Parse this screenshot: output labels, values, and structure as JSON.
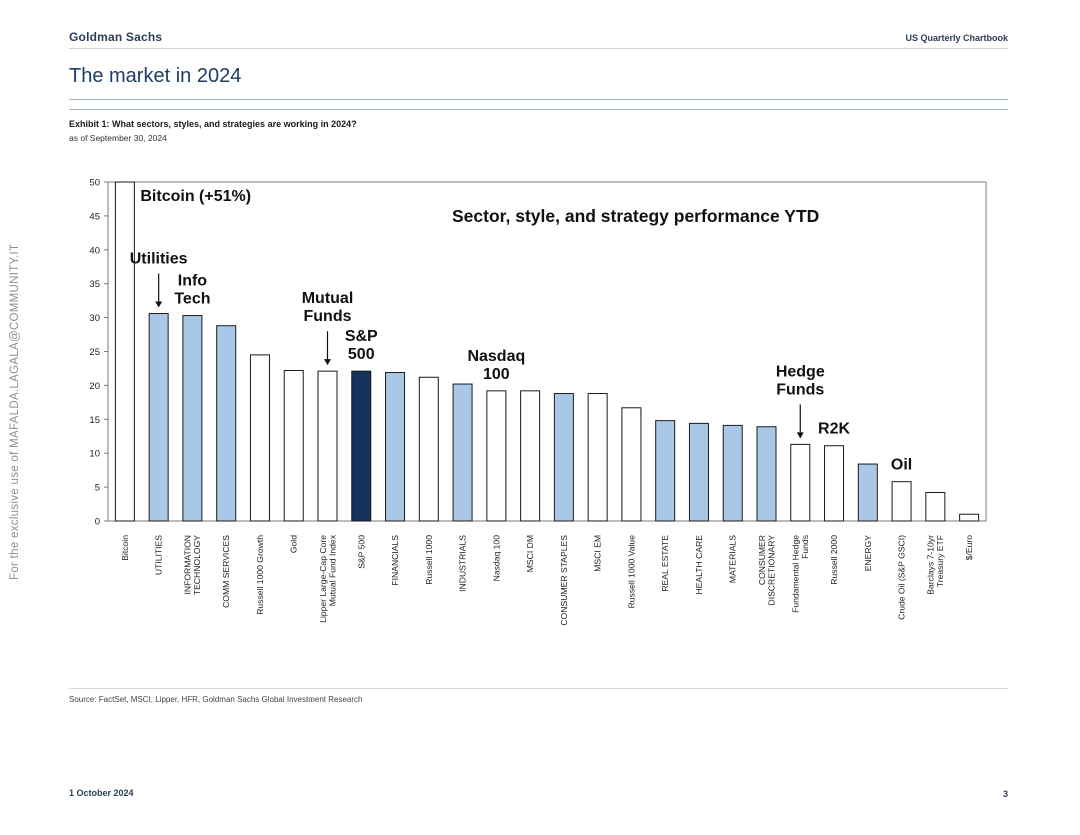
{
  "header": {
    "brand": "Goldman Sachs",
    "publication": "US Quarterly Chartbook"
  },
  "page_title": "The market in 2024",
  "exhibit": {
    "title": "Exhibit 1: What sectors, styles, and strategies are working in 2024?",
    "subtitle": "as of September 30, 2024"
  },
  "source": "Source: FactSet, MSCI, Lipper, HFR, Goldman Sachs Global Investment Research",
  "footer": {
    "date": "1 October 2024",
    "page_number": "3"
  },
  "watermark": "For the exclusive use of MAFALDA.LAGALA@COMMUNITY.IT",
  "colors": {
    "sector": "#a9c8e8",
    "highlight": "#14325c",
    "other": "#ffffff",
    "stroke": "#1a1a1a"
  },
  "chart_data": {
    "type": "bar",
    "title": "Sector, style, and strategy performance YTD",
    "ylim": [
      0,
      50
    ],
    "yticks": [
      0,
      5,
      10,
      15,
      20,
      25,
      30,
      35,
      40,
      45,
      50
    ],
    "grid": false,
    "categories": [
      [
        "Bitcoin"
      ],
      [
        "UTILITIES"
      ],
      [
        "INFORMATION",
        "TECHNOLOGY"
      ],
      [
        "COMM SERVICES"
      ],
      [
        "Russell 1000 Growth"
      ],
      [
        "Gold"
      ],
      [
        "Lipper Large-Cap Core",
        "Mutual Fund Index"
      ],
      [
        "S&P 500"
      ],
      [
        "FINANCIALS"
      ],
      [
        "Russell 1000"
      ],
      [
        "INDUSTRIALS"
      ],
      [
        "Nasdaq 100"
      ],
      [
        "MSCI DM"
      ],
      [
        "CONSUMER STAPLES"
      ],
      [
        "MSCI EM"
      ],
      [
        "Russell 1000 Value"
      ],
      [
        "REAL ESTATE"
      ],
      [
        "HEALTH CARE"
      ],
      [
        "MATERIALS"
      ],
      [
        "CONSUMER",
        "DISCRETIONARY"
      ],
      [
        "Fundamental Hedge",
        "Funds"
      ],
      [
        "Russell 2000"
      ],
      [
        "ENERGY"
      ],
      [
        "Crude Oil (S&P GSCI)"
      ],
      [
        "Barclays 7-10yr",
        "Treasury ETF"
      ],
      [
        "$/Euro"
      ]
    ],
    "values": [
      51,
      30.6,
      30.3,
      28.8,
      24.5,
      22.2,
      22.1,
      22.1,
      21.9,
      21.2,
      20.2,
      19.2,
      19.2,
      18.8,
      18.8,
      16.7,
      14.8,
      14.4,
      14.1,
      13.9,
      11.3,
      11.1,
      8.4,
      5.8,
      4.2,
      1.0
    ],
    "bar_kinds": [
      "other",
      "sector",
      "sector",
      "sector",
      "other",
      "other",
      "other",
      "highlight",
      "sector",
      "other",
      "sector",
      "other",
      "other",
      "sector",
      "other",
      "other",
      "sector",
      "sector",
      "sector",
      "sector",
      "other",
      "other",
      "sector",
      "other",
      "other",
      "other"
    ],
    "annotations": [
      {
        "lines": [
          "Bitcoin (+51%)"
        ],
        "bar": 0,
        "arrow": false
      },
      {
        "lines": [
          "Utilities"
        ],
        "bar": 1,
        "arrow": true
      },
      {
        "lines": [
          "Info",
          "Tech"
        ],
        "bar": 2,
        "arrow": false
      },
      {
        "lines": [
          "Mutual",
          "Funds"
        ],
        "bar": 6,
        "arrow": true
      },
      {
        "lines": [
          "S&P",
          "500"
        ],
        "bar": 7,
        "arrow": false
      },
      {
        "lines": [
          "Nasdaq",
          "100"
        ],
        "bar": 11,
        "arrow": false
      },
      {
        "lines": [
          "Hedge",
          "Funds"
        ],
        "bar": 20,
        "arrow": true
      },
      {
        "lines": [
          "R2K"
        ],
        "bar": 21,
        "arrow": false
      },
      {
        "lines": [
          "Oil"
        ],
        "bar": 23,
        "arrow": false
      }
    ]
  }
}
